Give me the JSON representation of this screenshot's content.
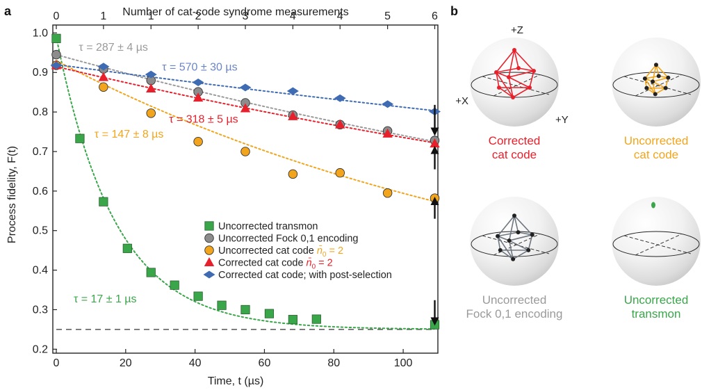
{
  "panel_a_letter": "a",
  "panel_b_letter": "b",
  "chart_data": {
    "type": "scatter",
    "xlabel": "Time, t (µs)",
    "ylabel": "Process fidelity, F(t)",
    "top_xlabel": "Number of cat-code syndrome measurements",
    "xlim": [
      -1,
      110
    ],
    "ylim": [
      0.19,
      1.02
    ],
    "x_ticks": [
      0,
      20,
      40,
      60,
      80,
      100
    ],
    "y_ticks": [
      0.2,
      0.3,
      0.4,
      0.5,
      0.6,
      0.7,
      0.8,
      0.9,
      1.0
    ],
    "y_tick_labels": [
      "0.2",
      "0.3",
      "0.4",
      "0.5",
      "0.6",
      "0.7",
      "0.8",
      "0.9",
      "1.0"
    ],
    "top_ticks": [
      {
        "x": 0,
        "label": "0"
      },
      {
        "x": 13.6,
        "label": "1"
      },
      {
        "x": 27.3,
        "label": "1"
      },
      {
        "x": 40.9,
        "label": "2"
      },
      {
        "x": 54.5,
        "label": "3"
      },
      {
        "x": 68.2,
        "label": "4"
      },
      {
        "x": 81.8,
        "label": "4"
      },
      {
        "x": 95.5,
        "label": "5"
      },
      {
        "x": 109.1,
        "label": "6"
      }
    ],
    "baseline": 0.25,
    "series": [
      {
        "key": "transmon",
        "name": "Uncorrected transmon",
        "marker": "square",
        "color": "#3aa64a",
        "x": [
          0,
          6.8,
          13.6,
          20.5,
          27.3,
          34.1,
          40.9,
          47.7,
          54.5,
          61.4,
          68.2,
          75.0,
          109.1
        ],
        "y": [
          0.986,
          0.733,
          0.573,
          0.455,
          0.394,
          0.362,
          0.334,
          0.311,
          0.3,
          0.29,
          0.275,
          0.276,
          0.262
        ]
      },
      {
        "key": "fock",
        "name": "Uncorrected Fock 0,1 encoding",
        "marker": "circle",
        "color": "#8c8c8c",
        "x": [
          0,
          13.6,
          27.3,
          40.9,
          54.5,
          68.2,
          81.8,
          95.5,
          109.1
        ],
        "y": [
          0.945,
          0.909,
          0.88,
          0.851,
          0.823,
          0.792,
          0.768,
          0.752,
          0.728
        ]
      },
      {
        "key": "cat_uncorr",
        "name": "Uncorrected cat code",
        "marker": "circle",
        "color": "#f2a51c",
        "x": [
          0,
          13.6,
          27.3,
          40.9,
          54.5,
          68.2,
          81.8,
          95.5,
          109.1
        ],
        "y": [
          0.918,
          0.863,
          0.797,
          0.725,
          0.7,
          0.643,
          0.646,
          0.595,
          0.582
        ]
      },
      {
        "key": "cat_corr",
        "name": "Corrected cat code",
        "marker": "triangle",
        "color": "#e8202b",
        "x": [
          0,
          13.6,
          27.3,
          40.9,
          54.5,
          68.2,
          81.8,
          95.5,
          109.1
        ],
        "y": [
          0.918,
          0.888,
          0.859,
          0.836,
          0.809,
          0.789,
          0.768,
          0.745,
          0.72
        ]
      },
      {
        "key": "cat_post",
        "name": "Corrected cat code; with post-selection",
        "marker": "diamond",
        "color": "#3f6bb3",
        "x": [
          0,
          13.6,
          27.3,
          40.9,
          54.5,
          68.2,
          81.8,
          95.5,
          109.1
        ],
        "y": [
          0.918,
          0.915,
          0.895,
          0.875,
          0.862,
          0.853,
          0.835,
          0.82,
          0.801
        ]
      }
    ],
    "fits": [
      {
        "key": "transmon",
        "color": "#3aa64a",
        "F0": 0.99,
        "tau": 17,
        "c": 0.25
      },
      {
        "key": "fock",
        "color": "#9a9a9a",
        "F0": 0.945,
        "tau": 287,
        "c": 0.25
      },
      {
        "key": "cat_uncorr",
        "color": "#f2a51c",
        "F0": 0.93,
        "tau": 147,
        "c": 0.25
      },
      {
        "key": "cat_corr",
        "color": "#e8202b",
        "F0": 0.915,
        "tau": 318,
        "c": 0.25
      },
      {
        "key": "cat_post",
        "color": "#3f6bb3",
        "F0": 0.92,
        "tau": 570,
        "c": 0.25
      }
    ],
    "annotations": [
      {
        "text": "τ = 287 ± 4 µs",
        "color": "#9a9a9a",
        "x": 6.5,
        "y": 0.955
      },
      {
        "text": "τ = 570 ± 30 µs",
        "color": "#6a85c6",
        "x": 30.5,
        "y": 0.905
      },
      {
        "text": "τ = 318 ± 5 µs",
        "color": "#e8202b",
        "x": 32.5,
        "y": 0.773
      },
      {
        "text": "τ = 147 ± 8 µs",
        "color": "#f2a51c",
        "x": 11.0,
        "y": 0.735
      },
      {
        "text": "τ = 17 ± 1 µs",
        "color": "#3aa64a",
        "x": 5.0,
        "y": 0.318
      }
    ],
    "arrows": [
      {
        "x": 109.1,
        "from": 0.818,
        "to": 0.75,
        "direction": "down"
      },
      {
        "x": 109.1,
        "from": 0.655,
        "to": 0.704,
        "direction": "up"
      },
      {
        "x": 109.1,
        "from": 0.53,
        "to": 0.575,
        "direction": "up"
      },
      {
        "x": 109.1,
        "from": 0.324,
        "to": 0.27,
        "direction": "down"
      }
    ],
    "legend": {
      "placement": "lower-right",
      "nbar_symbol": "n̄",
      "nbar_sub": "0",
      "nbar_value": " = 2"
    }
  },
  "spheres": [
    {
      "key": "corrected-cat",
      "color": "#e8202b",
      "label_lines": [
        "Corrected",
        "cat code"
      ],
      "axis_labels": {
        "z": "+Z",
        "x": "+X",
        "y": "+Y"
      }
    },
    {
      "key": "uncorrected-cat",
      "color": "#f2a51c",
      "label_lines": [
        "Uncorrected",
        "cat code"
      ]
    },
    {
      "key": "uncorrected-fock",
      "color": "#6e7680",
      "label_color": "#9a9a9a",
      "label_lines": [
        "Uncorrected",
        "Fock 0,1 encoding"
      ]
    },
    {
      "key": "uncorrected-transmon",
      "color": "#3aa64a",
      "label_lines": [
        "Uncorrected",
        "transmon"
      ]
    }
  ]
}
